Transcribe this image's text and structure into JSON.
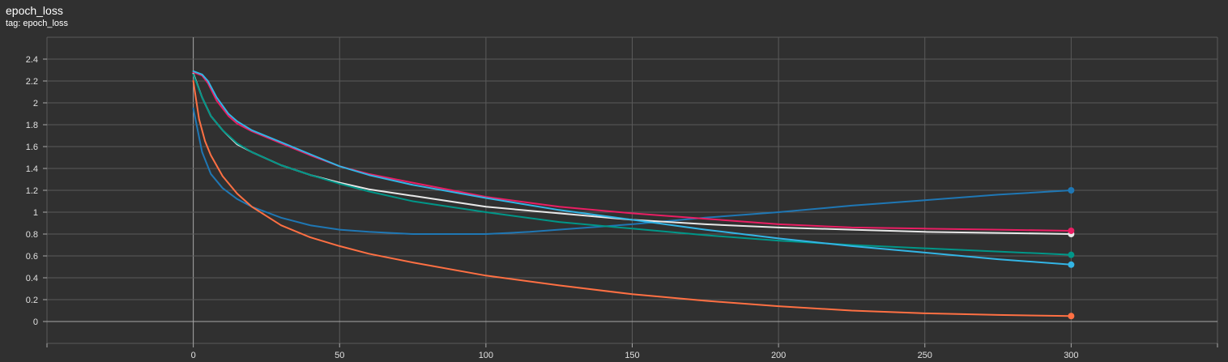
{
  "header": {
    "title": "epoch_loss",
    "tag": "tag: epoch_loss"
  },
  "chart_data": {
    "type": "line",
    "title": "epoch_loss",
    "subtitle": "tag: epoch_loss",
    "xlabel": "",
    "ylabel": "",
    "xlim": [
      -50,
      350
    ],
    "ylim": [
      -0.2,
      2.6
    ],
    "x_ticks": [
      0,
      50,
      100,
      150,
      200,
      250,
      300
    ],
    "y_ticks": [
      0,
      0.2,
      0.4,
      0.6,
      0.8,
      1,
      1.2,
      1.4,
      1.6,
      1.8,
      2,
      2.2,
      2.4
    ],
    "grid": true,
    "legend": "none",
    "series": [
      {
        "color": "#1f77b4",
        "x": [
          0,
          3,
          6,
          10,
          15,
          20,
          25,
          30,
          40,
          50,
          60,
          75,
          90,
          100,
          115,
          130,
          150,
          175,
          200,
          225,
          250,
          275,
          300
        ],
        "y": [
          1.95,
          1.55,
          1.35,
          1.22,
          1.12,
          1.05,
          1.0,
          0.95,
          0.88,
          0.84,
          0.82,
          0.8,
          0.8,
          0.8,
          0.82,
          0.85,
          0.89,
          0.95,
          1.0,
          1.06,
          1.11,
          1.16,
          1.2
        ]
      },
      {
        "color": "#ff7043",
        "x": [
          0,
          2,
          4,
          6,
          10,
          15,
          20,
          30,
          40,
          50,
          60,
          75,
          100,
          125,
          150,
          175,
          200,
          225,
          250,
          275,
          300
        ],
        "y": [
          2.2,
          1.85,
          1.65,
          1.52,
          1.33,
          1.17,
          1.05,
          0.88,
          0.77,
          0.69,
          0.62,
          0.54,
          0.42,
          0.33,
          0.25,
          0.19,
          0.14,
          0.1,
          0.075,
          0.06,
          0.05
        ]
      },
      {
        "color": "#e8e8e8",
        "x": [
          0,
          3,
          6,
          10,
          15,
          20,
          30,
          40,
          50,
          60,
          75,
          100,
          125,
          150,
          175,
          200,
          225,
          250,
          275,
          300
        ],
        "y": [
          2.27,
          2.05,
          1.88,
          1.75,
          1.62,
          1.55,
          1.43,
          1.34,
          1.27,
          1.21,
          1.15,
          1.05,
          0.99,
          0.93,
          0.89,
          0.86,
          0.84,
          0.82,
          0.81,
          0.8
        ]
      },
      {
        "color": "#009688",
        "x": [
          0,
          3,
          6,
          10,
          15,
          20,
          30,
          40,
          50,
          60,
          75,
          100,
          125,
          150,
          175,
          200,
          225,
          250,
          275,
          300
        ],
        "y": [
          2.26,
          2.05,
          1.88,
          1.75,
          1.63,
          1.55,
          1.43,
          1.34,
          1.26,
          1.19,
          1.1,
          1.0,
          0.91,
          0.85,
          0.79,
          0.74,
          0.7,
          0.67,
          0.64,
          0.61
        ]
      },
      {
        "color": "#e91e63",
        "x": [
          0,
          3,
          5,
          8,
          12,
          15,
          20,
          30,
          40,
          50,
          60,
          75,
          100,
          125,
          150,
          175,
          200,
          225,
          250,
          275,
          300
        ],
        "y": [
          2.28,
          2.25,
          2.18,
          2.02,
          1.88,
          1.81,
          1.74,
          1.63,
          1.52,
          1.42,
          1.35,
          1.27,
          1.14,
          1.05,
          0.99,
          0.94,
          0.89,
          0.86,
          0.85,
          0.84,
          0.83
        ]
      },
      {
        "color": "#33b5e5",
        "x": [
          0,
          3,
          5,
          8,
          12,
          15,
          20,
          30,
          40,
          50,
          60,
          75,
          100,
          125,
          150,
          175,
          200,
          225,
          250,
          275,
          300
        ],
        "y": [
          2.29,
          2.26,
          2.2,
          2.05,
          1.9,
          1.83,
          1.75,
          1.64,
          1.53,
          1.42,
          1.34,
          1.25,
          1.13,
          1.02,
          0.93,
          0.84,
          0.76,
          0.69,
          0.63,
          0.57,
          0.52
        ]
      }
    ]
  }
}
